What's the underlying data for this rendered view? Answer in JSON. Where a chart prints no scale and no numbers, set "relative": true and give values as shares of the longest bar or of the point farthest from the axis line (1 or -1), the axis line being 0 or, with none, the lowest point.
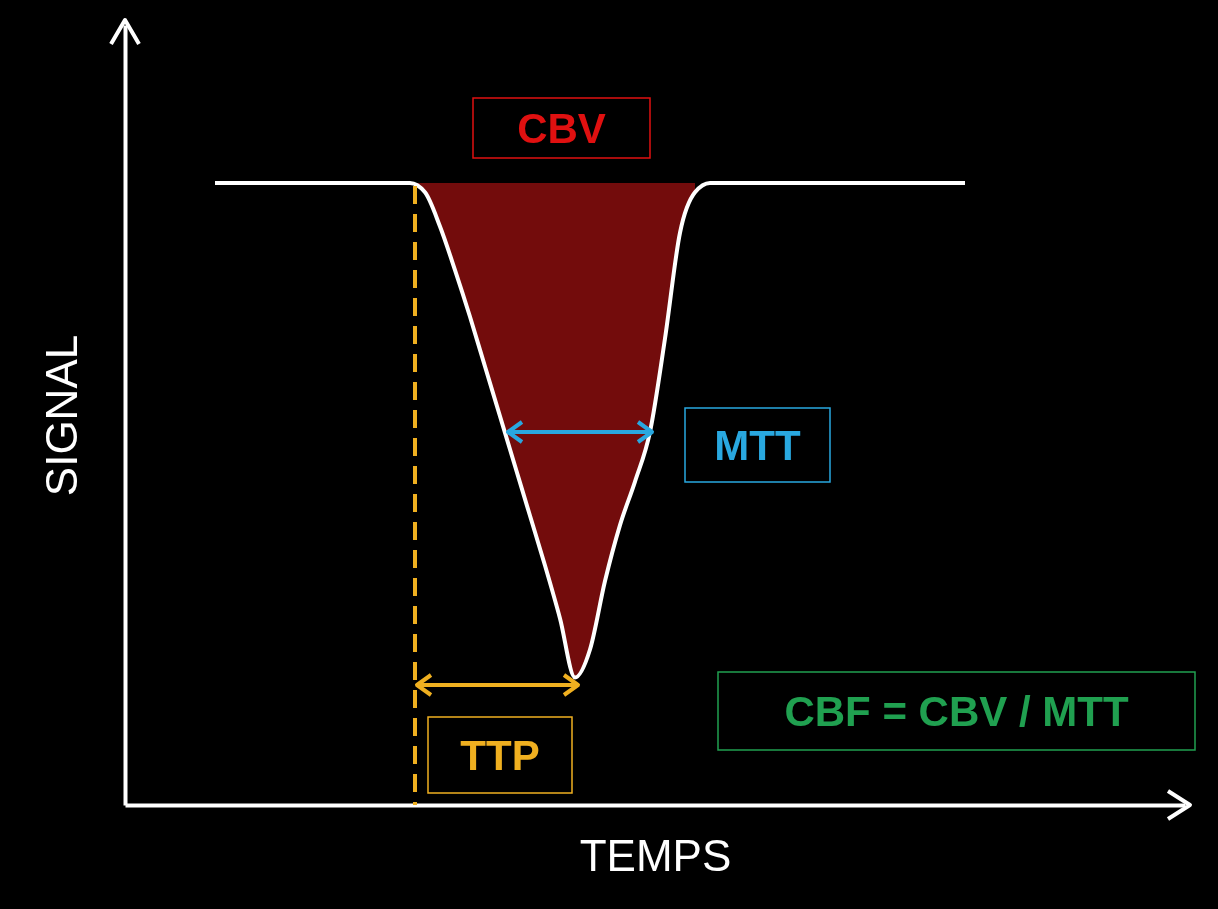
{
  "chart_data": {
    "type": "line",
    "relative": true,
    "xlabel": "TEMPS",
    "ylabel": "SIGNAL",
    "categories": [
      null,
      null,
      null,
      null,
      null,
      null,
      null,
      null,
      null,
      null,
      null,
      null,
      null,
      null,
      null,
      null,
      null,
      null,
      null,
      null,
      null,
      null,
      null,
      null,
      null,
      null,
      null,
      null,
      null,
      null,
      null,
      null,
      null,
      null,
      null,
      null,
      null,
      null,
      null,
      null,
      null,
      null,
      null,
      null,
      null,
      null,
      null,
      null,
      null,
      null,
      null
    ],
    "series": [
      {
        "color": "#ffffff",
        "values": [
          1,
          1,
          1,
          1,
          1,
          1,
          1,
          1,
          1,
          1,
          1,
          1,
          1,
          1,
          0.985,
          0.93,
          0.86,
          0.785,
          0.705,
          0.625,
          0.545,
          0.465,
          0.385,
          0.3,
          0.205,
          0.25,
          0.36,
          0.45,
          0.52,
          0.6,
          0.75,
          0.92,
          0.985,
          1,
          1,
          1,
          1,
          1,
          1,
          1,
          1,
          1,
          1,
          1,
          1,
          1,
          1,
          1,
          1,
          1,
          1
        ],
        "lower": [
          null,
          null,
          null,
          null,
          null,
          null,
          null,
          null,
          null,
          null,
          null,
          null,
          null,
          1,
          0.985,
          0.93,
          0.86,
          0.785,
          0.705,
          0.625,
          0.545,
          0.465,
          0.385,
          0.3,
          0.205,
          0.25,
          0.36,
          0.45,
          0.52,
          0.6,
          0.75,
          0.92,
          0.985,
          null,
          null,
          null,
          null,
          null,
          null,
          null,
          null,
          null,
          null,
          null,
          null,
          null,
          null,
          null,
          null,
          null,
          null
        ],
        "upper": [
          null,
          null,
          null,
          null,
          null,
          null,
          null,
          null,
          null,
          null,
          null,
          null,
          null,
          1,
          1,
          1,
          1,
          1,
          1,
          1,
          1,
          1,
          1,
          1,
          1,
          1,
          1,
          1,
          1,
          1,
          1,
          1,
          1,
          null,
          null,
          null,
          null,
          null,
          null,
          null,
          null,
          null,
          null,
          null,
          null,
          null,
          null,
          null,
          null,
          null,
          null
        ]
      }
    ],
    "annotations": [
      "CBV",
      "MTT",
      "TTP",
      "CBF = CBV / MTT"
    ]
  }
}
